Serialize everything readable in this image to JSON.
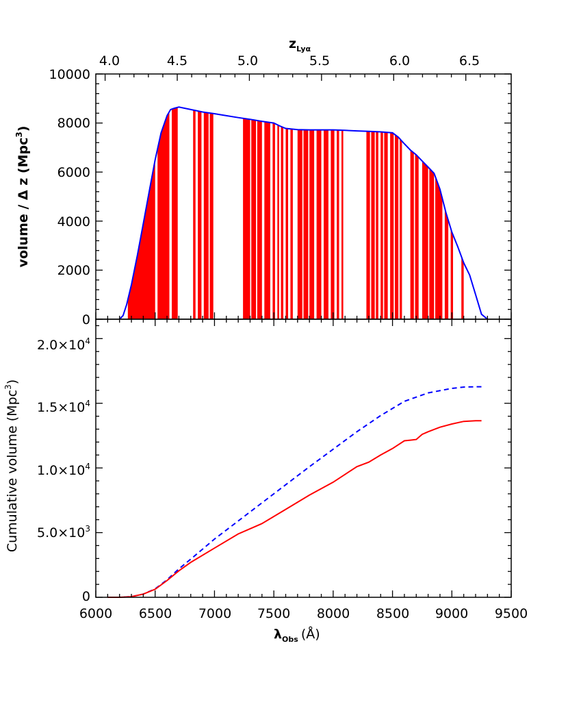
{
  "figure": {
    "top_axis": {
      "label_main": "z",
      "label_sub": "Lyα",
      "ticks": [
        "4.0",
        "4.5",
        "5.0",
        "5.5",
        "6.0",
        "6.5"
      ]
    },
    "bottom_axis": {
      "label_main": "λ",
      "label_sub": "Obs",
      "label_unit": "(Å)",
      "ticks": [
        "6000",
        "6500",
        "7000",
        "7500",
        "8000",
        "8500",
        "9000",
        "9500"
      ]
    },
    "panel_top": {
      "ylabel_main": "volume / Δ z (Mpc",
      "ylabel_sup": "3",
      "ylabel_close": ")",
      "ticks": [
        "0",
        "2000",
        "4000",
        "6000",
        "8000",
        "10000"
      ]
    },
    "panel_bottom": {
      "ylabel_main": "Cumulative volume (Mpc",
      "ylabel_sup": "3",
      "ylabel_close": ")",
      "tick_zero": "0",
      "ticks": [
        {
          "mant": "5.0×10",
          "exp": "3"
        },
        {
          "mant": "1.0×10",
          "exp": "4"
        },
        {
          "mant": "1.5×10",
          "exp": "4"
        },
        {
          "mant": "2.0×10",
          "exp": "4"
        }
      ]
    }
  },
  "chart_data": [
    {
      "type": "area",
      "panel": "top",
      "xlabel": "λObs (Å)",
      "ylabel": "volume / Δ z (Mpc3)",
      "top_xlabel": "zLyα",
      "xlim": [
        6000,
        9500
      ],
      "ylim": [
        0,
        10000
      ],
      "top_xticks": [
        4.0,
        4.5,
        5.0,
        5.5,
        6.0,
        6.5
      ],
      "colors": {
        "envelope": "#0000ff",
        "usable": "#ff0000"
      },
      "envelope": {
        "x": [
          6200,
          6230,
          6260,
          6300,
          6350,
          6400,
          6450,
          6500,
          6550,
          6600,
          6630,
          6660,
          6700,
          6800,
          6900,
          7000,
          7100,
          7200,
          7300,
          7400,
          7500,
          7550,
          7600,
          7700,
          7800,
          7900,
          8000,
          8100,
          8200,
          8300,
          8400,
          8500,
          8550,
          8600,
          8650,
          8700,
          8750,
          8800,
          8850,
          8900,
          8950,
          9000,
          9050,
          9100,
          9150,
          9200,
          9250,
          9300
        ],
        "y": [
          0,
          150,
          600,
          1400,
          2600,
          3900,
          5200,
          6500,
          7600,
          8300,
          8550,
          8600,
          8650,
          8550,
          8450,
          8380,
          8300,
          8220,
          8150,
          8070,
          8000,
          7880,
          7780,
          7730,
          7720,
          7720,
          7720,
          7700,
          7680,
          7660,
          7640,
          7600,
          7420,
          7150,
          6900,
          6700,
          6450,
          6200,
          5950,
          5300,
          4350,
          3550,
          2950,
          2300,
          1800,
          1000,
          200,
          0
        ]
      },
      "usable_bands": [
        [
          6270,
          6500
        ],
        [
          6520,
          6620
        ],
        [
          6640,
          6690
        ],
        [
          6820,
          6840
        ],
        [
          6860,
          6890
        ],
        [
          6910,
          6950
        ],
        [
          6960,
          6990
        ],
        [
          7240,
          7300
        ],
        [
          7310,
          7350
        ],
        [
          7360,
          7400
        ],
        [
          7420,
          7470
        ],
        [
          7490,
          7510
        ],
        [
          7530,
          7545
        ],
        [
          7560,
          7580
        ],
        [
          7600,
          7620
        ],
        [
          7640,
          7660
        ],
        [
          7700,
          7740
        ],
        [
          7750,
          7790
        ],
        [
          7800,
          7840
        ],
        [
          7860,
          7900
        ],
        [
          7920,
          7960
        ],
        [
          7980,
          8010
        ],
        [
          8030,
          8050
        ],
        [
          8070,
          8085
        ],
        [
          8280,
          8310
        ],
        [
          8320,
          8350
        ],
        [
          8360,
          8380
        ],
        [
          8400,
          8420
        ],
        [
          8430,
          8460
        ],
        [
          8480,
          8510
        ],
        [
          8520,
          8550
        ],
        [
          8560,
          8580
        ],
        [
          8650,
          8680
        ],
        [
          8690,
          8720
        ],
        [
          8750,
          8800
        ],
        [
          8810,
          8850
        ],
        [
          8860,
          8920
        ],
        [
          8940,
          8970
        ],
        [
          8990,
          9010
        ],
        [
          9080,
          9100
        ]
      ]
    },
    {
      "type": "line",
      "panel": "bottom",
      "xlabel": "λObs (Å)",
      "ylabel": "Cumulative volume (Mpc3)",
      "xlim": [
        6000,
        9500
      ],
      "ylim": [
        0,
        21500
      ],
      "series": [
        {
          "color": "#0000ff",
          "style": "dashed",
          "x": [
            6100,
            6200,
            6300,
            6400,
            6500,
            6600,
            6700,
            6800,
            7000,
            7200,
            7400,
            7600,
            7800,
            8000,
            8200,
            8400,
            8600,
            8800,
            9000,
            9100,
            9200,
            9250
          ],
          "y": [
            0,
            0,
            50,
            250,
            650,
            1350,
            2200,
            2950,
            4500,
            5900,
            7300,
            8700,
            10100,
            11450,
            12800,
            14050,
            15150,
            15800,
            16150,
            16250,
            16280,
            16280
          ]
        },
        {
          "color": "#ff0000",
          "style": "solid",
          "x": [
            6100,
            6200,
            6300,
            6400,
            6500,
            6600,
            6700,
            6800,
            7000,
            7200,
            7300,
            7400,
            7600,
            7800,
            8000,
            8200,
            8300,
            8400,
            8500,
            8600,
            8650,
            8700,
            8750,
            8800,
            8900,
            9000,
            9100,
            9200,
            9250
          ],
          "y": [
            0,
            0,
            50,
            250,
            620,
            1300,
            2050,
            2700,
            3800,
            4900,
            5300,
            5700,
            6800,
            7900,
            8900,
            10100,
            10450,
            11000,
            11500,
            12100,
            12150,
            12200,
            12600,
            12800,
            13150,
            13400,
            13600,
            13650,
            13650
          ]
        }
      ]
    }
  ]
}
